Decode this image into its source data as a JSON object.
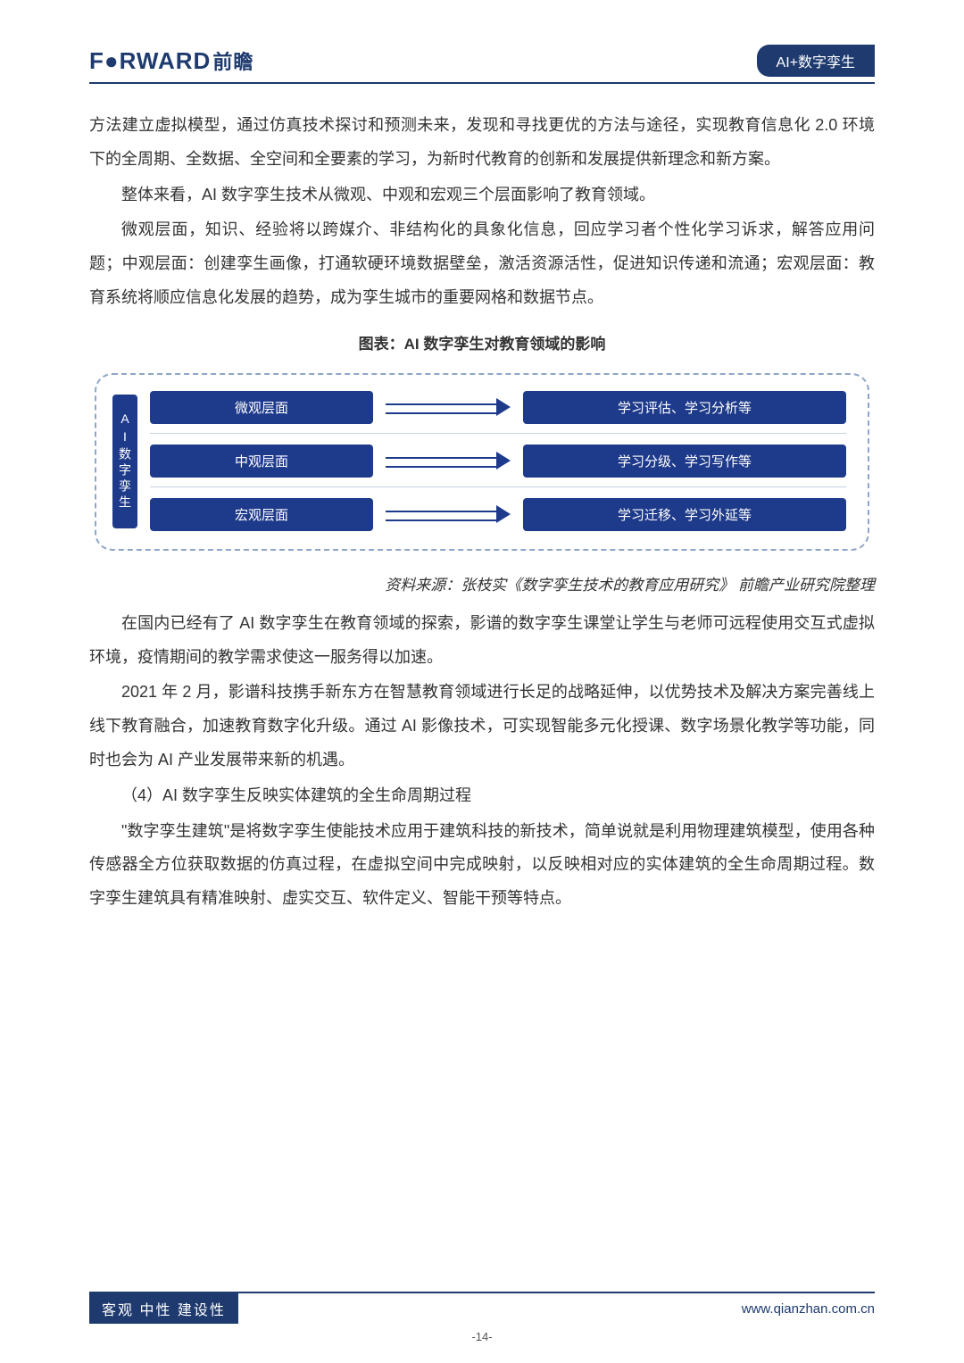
{
  "header": {
    "logo_en": "F●RWARD",
    "logo_cn": "前瞻",
    "badge": "AI+数字孪生"
  },
  "para1": "方法建立虚拟模型，通过仿真技术探讨和预测未来，发现和寻找更优的方法与途径，实现教育信息化 2.0 环境下的全周期、全数据、全空间和全要素的学习，为新时代教育的创新和发展提供新理念和新方案。",
  "para2": "整体来看，AI 数字孪生技术从微观、中观和宏观三个层面影响了教育领域。",
  "para3": "微观层面，知识、经验将以跨媒介、非结构化的具象化信息，回应学习者个性化学习诉求，解答应用问题；中观层面：创建孪生画像，打通软硬环境数据壁垒，激活资源活性，促进知识传递和流通；宏观层面：教育系统将顺应信息化发展的趋势，成为孪生城市的重要网格和数据节点。",
  "chart": {
    "title": "图表：AI 数字孪生对教育领域的影响",
    "vertical_label": "AI数字孪生",
    "rows": [
      {
        "left": "微观层面",
        "right": "学习评估、学习分析等"
      },
      {
        "left": "中观层面",
        "right": "学习分级、学习写作等"
      },
      {
        "left": "宏观层面",
        "right": "学习迁移、学习外延等"
      }
    ],
    "colors": {
      "box": "#1e3a8a",
      "border": "#8fa5c7",
      "line": "#c8d2e4"
    }
  },
  "source": "资料来源：张枝实《数字孪生技术的教育应用研究》 前瞻产业研究院整理",
  "para4": "在国内已经有了 AI 数字孪生在教育领域的探索，影谱的数字孪生课堂让学生与老师可远程使用交互式虚拟环境，疫情期间的教学需求使这一服务得以加速。",
  "para5": "2021 年 2 月，影谱科技携手新东方在智慧教育领域进行长足的战略延伸，以优势技术及解决方案完善线上线下教育融合，加速教育数字化升级。通过 AI 影像技术，可实现智能多元化授课、数字场景化教学等功能，同时也会为 AI 产业发展带来新的机遇。",
  "heading4": "（4）AI 数字孪生反映实体建筑的全生命周期过程",
  "para6": "\"数字孪生建筑\"是将数字孪生使能技术应用于建筑科技的新技术，简单说就是利用物理建筑模型，使用各种传感器全方位获取数据的仿真过程，在虚拟空间中完成映射，以反映相对应的实体建筑的全生命周期过程。数字孪生建筑具有精准映射、虚实交互、软件定义、智能干预等特点。",
  "footer": {
    "left": "客观 中性 建设性",
    "right": "www.qianzhan.com.cn",
    "page": "-14-"
  }
}
